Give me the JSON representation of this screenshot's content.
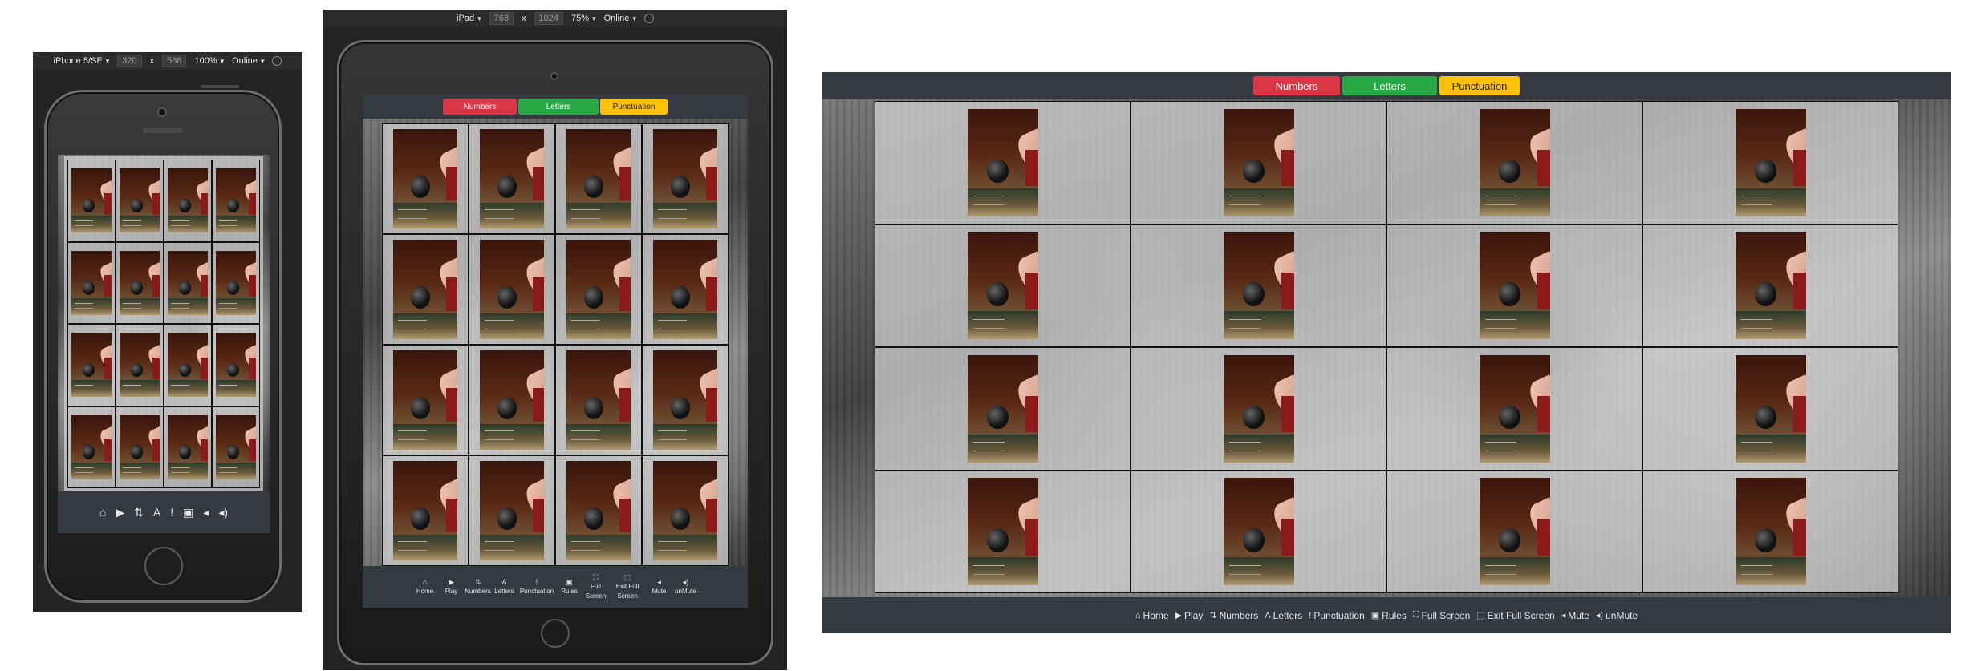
{
  "devices": {
    "phone": {
      "name": "iPhone 5/SE",
      "width": "320",
      "height": "568",
      "zoom": "100%",
      "network": "Online",
      "sep": "x"
    },
    "tablet": {
      "name": "iPad",
      "width": "768",
      "height": "1024",
      "zoom": "75%",
      "network": "Online",
      "sep": "x"
    }
  },
  "topbar": {
    "numbers": "Numbers",
    "letters": "Letters",
    "punctuation": "Punctuation"
  },
  "colors": {
    "numbers": "#dc3545",
    "letters": "#28a745",
    "punctuation": "#ffc107",
    "bar": "#343a40"
  },
  "card_grid": {
    "rows": 4,
    "columns": 4,
    "card_count": 16
  },
  "nav": [
    {
      "icon": "home-icon",
      "glyph": "⌂",
      "label": "Home"
    },
    {
      "icon": "play-icon",
      "glyph": "▶",
      "label": "Play"
    },
    {
      "icon": "sort-numeric-icon",
      "glyph": "⇅",
      "label": "Numbers"
    },
    {
      "icon": "letter-a-icon",
      "glyph": "A",
      "label": "Letters"
    },
    {
      "icon": "exclamation-icon",
      "glyph": "!",
      "label": "Punctuation"
    },
    {
      "icon": "rules-card-icon",
      "glyph": "▣",
      "label": "Rules"
    },
    {
      "icon": "fullscreen-icon",
      "glyph": "⛶",
      "label": "Full Screen"
    },
    {
      "icon": "exit-fullscreen-icon",
      "glyph": "⬚",
      "label": "Exit Full Screen"
    },
    {
      "icon": "mute-icon",
      "glyph": "◂",
      "label": "Mute"
    },
    {
      "icon": "unmute-icon",
      "glyph": "◂)",
      "label": "unMute"
    }
  ],
  "tablet_nav_labels": {
    "full_screen": [
      "Full",
      "Screen"
    ],
    "exit_full_screen": [
      "Exit Full",
      "Screen"
    ]
  }
}
